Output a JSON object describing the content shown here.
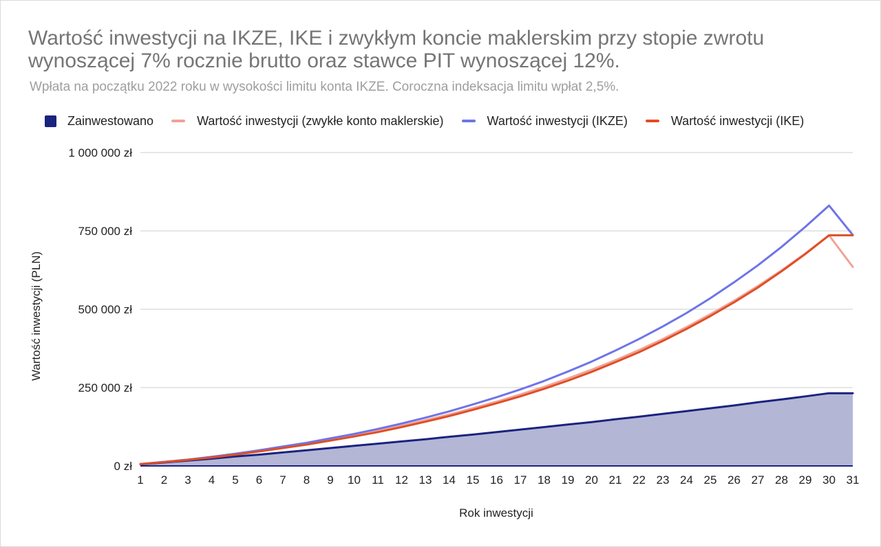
{
  "chart_data": {
    "type": "line",
    "title": "Wartość inwestycji na IKZE, IKE i zwykłym koncie maklerskim przy stopie zwrotu wynoszącej 7% rocznie brutto oraz stawce PIT wynoszącej 12%.",
    "subtitle": "Wpłata na początku 2022 roku w wysokości limitu konta IKZE. Coroczna indeksacja limitu wpłat 2,5%.",
    "xlabel": "Rok inwestycji",
    "ylabel": "Wartość inwestycji (PLN)",
    "x": [
      1,
      2,
      3,
      4,
      5,
      6,
      7,
      8,
      9,
      10,
      11,
      12,
      13,
      14,
      15,
      16,
      17,
      18,
      19,
      20,
      21,
      22,
      23,
      24,
      25,
      26,
      27,
      28,
      29,
      30,
      31
    ],
    "ylim": [
      0,
      1000000
    ],
    "y_ticks": [
      {
        "value": 0,
        "label": "0 zł"
      },
      {
        "value": 250000,
        "label": "250 000 zł"
      },
      {
        "value": 500000,
        "label": "500 000 zł"
      },
      {
        "value": 750000,
        "label": "750 000 zł"
      },
      {
        "value": 1000000,
        "label": "1 000 000 zł"
      }
    ],
    "grid": true,
    "legend_position": "top",
    "series": [
      {
        "name": "Zainwestowano",
        "kind": "area",
        "color": "#1a237e",
        "fill": "#b4b6d6",
        "values": [
          5000,
          11000,
          17000,
          23000,
          30000,
          36000,
          43000,
          50000,
          57000,
          64000,
          71000,
          78000,
          85000,
          93000,
          100000,
          108000,
          116000,
          124000,
          132000,
          140000,
          149000,
          157000,
          166000,
          175000,
          184000,
          193000,
          203000,
          212000,
          222000,
          232000,
          232000
        ]
      },
      {
        "name": "Wartość inwestycji (zwykłe konto maklerskie)",
        "kind": "line",
        "color": "#f0a397",
        "values": [
          6000,
          13000,
          20000,
          28000,
          38000,
          48000,
          59000,
          71000,
          84000,
          98000,
          112000,
          128000,
          146000,
          164000,
          184000,
          205000,
          228000,
          252000,
          279000,
          307000,
          337000,
          370000,
          405000,
          443000,
          484000,
          527000,
          574000,
          624000,
          678000,
          736000,
          635000
        ]
      },
      {
        "name": "Wartość inwestycji (IKZE)",
        "kind": "line",
        "color": "#6e74e8",
        "values": [
          6000,
          13000,
          20000,
          29000,
          39000,
          50000,
          62000,
          74000,
          88000,
          102000,
          118000,
          135000,
          154000,
          174000,
          196000,
          219000,
          244000,
          271000,
          301000,
          333000,
          368000,
          405000,
          445000,
          488000,
          535000,
          586000,
          640000,
          699000,
          763000,
          831000,
          737000
        ]
      },
      {
        "name": "Wartość inwestycji (IKE)",
        "kind": "line",
        "color": "#e04e25",
        "values": [
          6000,
          12000,
          19000,
          27000,
          36000,
          46000,
          57000,
          68000,
          81000,
          94000,
          108000,
          124000,
          141000,
          159000,
          179000,
          200000,
          222000,
          246000,
          272000,
          300000,
          331000,
          363000,
          399000,
          437000,
          478000,
          522000,
          569000,
          621000,
          676000,
          736000,
          736000
        ]
      }
    ]
  }
}
